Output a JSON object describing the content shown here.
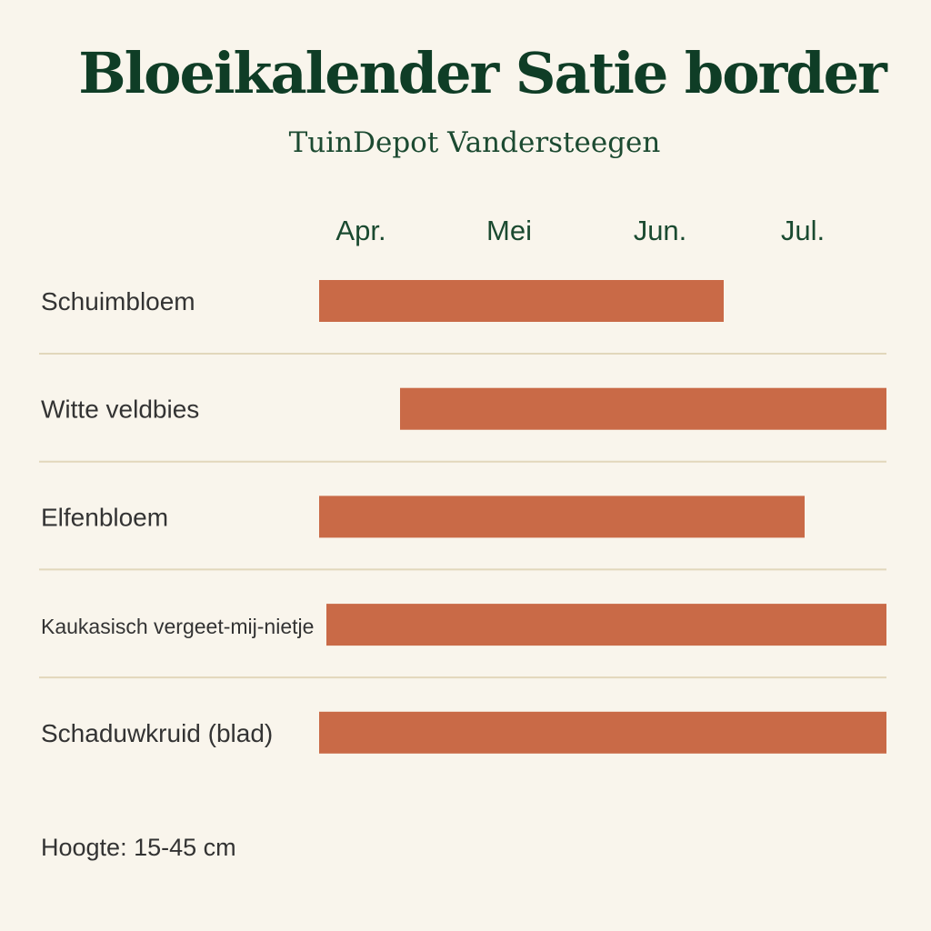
{
  "page": {
    "title": "Bloeikalender Satie border",
    "subtitle": "TuinDepot Vandersteegen",
    "footnote": "Hoogte: 15-45 cm"
  },
  "colors": {
    "background": "#f9f5ec",
    "bar": "#c96a47",
    "title": "#0f3d26",
    "month_label": "#1a4a30",
    "row_label": "#333333",
    "divider": "#e2d7bb"
  },
  "chart_data": {
    "type": "bar",
    "orientation": "horizontal-gantt",
    "title": "Bloeikalender Satie border",
    "subtitle": "TuinDepot Vandersteegen",
    "x_ticks": [
      "Apr.",
      "Mei",
      "Jun.",
      "Jul."
    ],
    "xlim": [
      "Apr.",
      "Jul."
    ],
    "grid": "horizontal dividers between rows",
    "legend": "none",
    "categories": [
      "Schuimbloem",
      "Witte veldbies",
      "Elfenbloem",
      "Kaukasisch vergeet-mij-nietje",
      "Schaduwkruid (blad)"
    ],
    "ranges": [
      {
        "label": "Schuimbloem",
        "start": "begin april",
        "end": "half juni"
      },
      {
        "label": "Witte veldbies",
        "start": "half april",
        "end": "eind juli"
      },
      {
        "label": "Elfenbloem",
        "start": "begin april",
        "end": "eind juni"
      },
      {
        "label": "Kaukasisch vergeet-mij-nietje",
        "start": "begin april",
        "end": "eind juli"
      },
      {
        "label": "Schaduwkruid (blad)",
        "start": "begin april",
        "end": "eind juli"
      }
    ],
    "note": "Hoogte: 15-45 cm"
  }
}
